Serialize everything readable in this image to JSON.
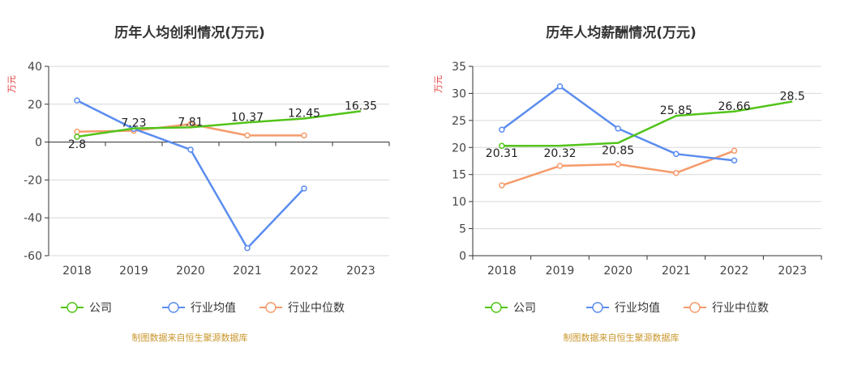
{
  "colors": {
    "company": "#52c41a",
    "industry_avg": "#5b8def",
    "industry_median": "#f59b6b"
  },
  "legend": [
    "公司",
    "行业均值",
    "行业中位数"
  ],
  "source": "制图数据来自恒生聚源数据库",
  "chart_data": [
    {
      "type": "line",
      "title": "历年人均创利情况(万元)",
      "ylabel": "万元",
      "categories": [
        "2018",
        "2019",
        "2020",
        "2021",
        "2022",
        "2023"
      ],
      "ylim": [
        -60,
        40
      ],
      "yticks": [
        -60,
        -40,
        -20,
        0,
        20,
        40
      ],
      "grid": true,
      "legend_position": "bottom",
      "series": [
        {
          "name": "公司",
          "key": "company",
          "values": [
            2.8,
            7.23,
            7.81,
            10.37,
            12.45,
            16.35
          ],
          "labels": [
            "2.8",
            "7.23",
            "7.81",
            "10.37",
            "12.45",
            "16.35"
          ]
        },
        {
          "name": "行业均值",
          "key": "industry_avg",
          "values": [
            22.0,
            7.0,
            -4.0,
            -56.0,
            -24.5,
            null
          ]
        },
        {
          "name": "行业中位数",
          "key": "industry_median",
          "values": [
            5.5,
            6.0,
            9.5,
            3.5,
            3.5,
            null
          ]
        }
      ]
    },
    {
      "type": "line",
      "title": "历年人均薪酬情况(万元)",
      "ylabel": "万元",
      "categories": [
        "2018",
        "2019",
        "2020",
        "2021",
        "2022",
        "2023"
      ],
      "ylim": [
        0,
        35
      ],
      "yticks": [
        0,
        5,
        10,
        15,
        20,
        25,
        30,
        35
      ],
      "grid": true,
      "legend_position": "bottom",
      "series": [
        {
          "name": "公司",
          "key": "company",
          "values": [
            20.31,
            20.32,
            20.85,
            25.85,
            26.66,
            28.5
          ],
          "labels": [
            "20.31",
            "20.32",
            "20.85",
            "25.85",
            "26.66",
            "28.5"
          ]
        },
        {
          "name": "行业均值",
          "key": "industry_avg",
          "values": [
            23.3,
            31.3,
            23.5,
            18.8,
            17.6,
            null
          ]
        },
        {
          "name": "行业中位数",
          "key": "industry_median",
          "values": [
            13.0,
            16.6,
            16.9,
            15.3,
            19.4,
            null
          ]
        }
      ]
    }
  ]
}
